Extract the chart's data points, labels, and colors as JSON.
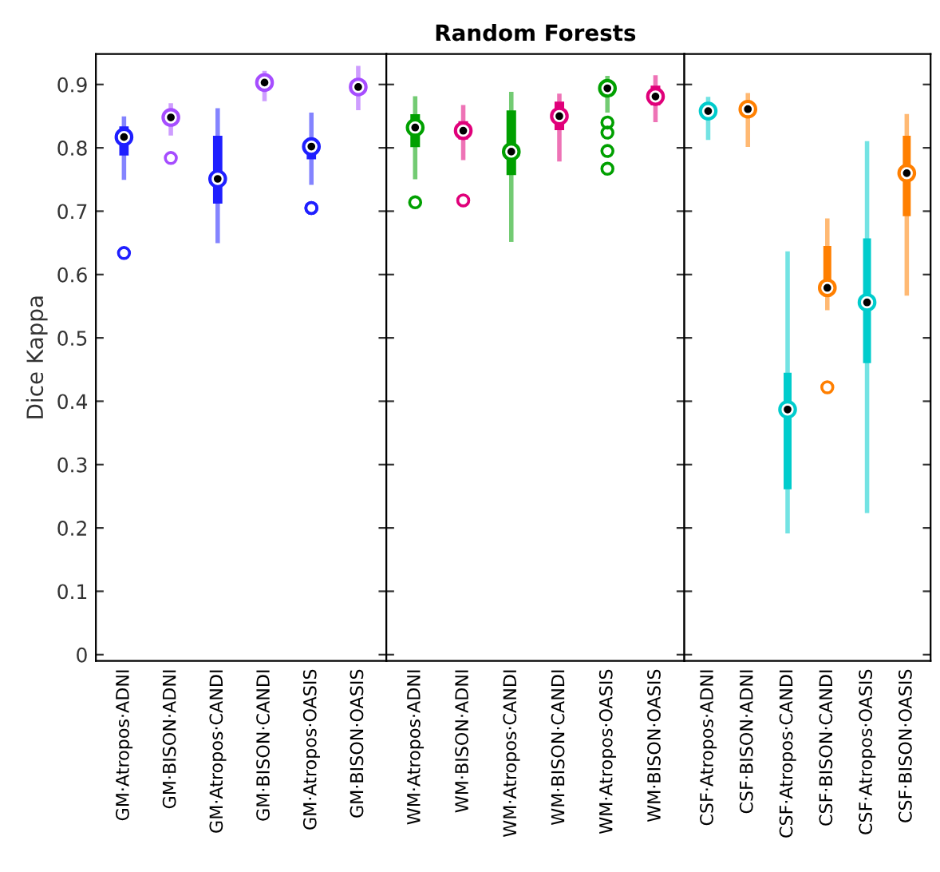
{
  "chart_data": [
    {
      "type": "box",
      "ylabel": "Dice Kappa",
      "categories": [
        "GM·Atropos·ADNI",
        "GM·BISON·ADNI",
        "GM·Atropos·CANDI",
        "GM·BISON·CANDI",
        "GM·Atropos·OASIS",
        "GM·BISON·OASIS"
      ],
      "colors": [
        "#1f1fff",
        "#a64dff",
        "#1f1fff",
        "#a64dff",
        "#1f1fff",
        "#a64dff"
      ],
      "boxes": [
        {
          "low": 0.753,
          "q1": 0.788,
          "median": 0.817,
          "q3": 0.834,
          "high": 0.846,
          "outliers": [
            0.634
          ]
        },
        {
          "low": 0.823,
          "q1": 0.842,
          "median": 0.848,
          "q3": 0.855,
          "high": 0.867,
          "outliers": [
            0.784
          ]
        },
        {
          "low": 0.653,
          "q1": 0.712,
          "median": 0.751,
          "q3": 0.819,
          "high": 0.859
        },
        {
          "low": 0.877,
          "q1": 0.896,
          "median": 0.903,
          "q3": 0.91,
          "high": 0.918
        },
        {
          "low": 0.745,
          "q1": 0.782,
          "median": 0.802,
          "q3": 0.813,
          "high": 0.852,
          "outliers": [
            0.705,
            0.705
          ]
        },
        {
          "low": 0.863,
          "q1": 0.888,
          "median": 0.896,
          "q3": 0.904,
          "high": 0.926
        }
      ],
      "ylim": [
        -0.01,
        0.948
      ],
      "yticks": [
        0,
        0.1,
        0.2,
        0.3,
        0.4,
        0.5,
        0.6,
        0.7,
        0.8,
        0.9
      ]
    },
    {
      "type": "box",
      "title": "Random Forests",
      "categories": [
        "WM·Atropos·ADNI",
        "WM·BISON·ADNI",
        "WM·Atropos·CANDI",
        "WM·BISON·CANDI",
        "WM·Atropos·OASIS",
        "WM·BISON·OASIS"
      ],
      "colors": [
        "#00a000",
        "#e0007a",
        "#00a000",
        "#e0007a",
        "#00a000",
        "#e0007a"
      ],
      "boxes": [
        {
          "low": 0.754,
          "q1": 0.801,
          "median": 0.832,
          "q3": 0.853,
          "high": 0.878,
          "outliers": [
            0.714
          ]
        },
        {
          "low": 0.784,
          "q1": 0.813,
          "median": 0.827,
          "q3": 0.842,
          "high": 0.864,
          "outliers": [
            0.717
          ]
        },
        {
          "low": 0.655,
          "q1": 0.757,
          "median": 0.794,
          "q3": 0.859,
          "high": 0.885
        },
        {
          "low": 0.782,
          "q1": 0.828,
          "median": 0.85,
          "q3": 0.873,
          "high": 0.882
        },
        {
          "low": 0.859,
          "q1": 0.888,
          "median": 0.894,
          "q3": 0.9,
          "high": 0.91,
          "outliers": [
            0.84,
            0.824,
            0.795,
            0.767
          ]
        },
        {
          "low": 0.844,
          "q1": 0.867,
          "median": 0.881,
          "q3": 0.898,
          "high": 0.911
        }
      ],
      "ylim": [
        -0.01,
        0.948
      ],
      "yticks": [
        0,
        0.1,
        0.2,
        0.3,
        0.4,
        0.5,
        0.6,
        0.7,
        0.8,
        0.9
      ],
      "tick_labels": "x"
    },
    {
      "type": "box",
      "categories": [
        "CSF·Atropos·ADNI",
        "CSF·BISON·ADNI",
        "CSF·Atropos·CANDI",
        "CSF·BISON·CANDI",
        "CSF·Atropos·OASIS",
        "CSF·BISON·OASIS"
      ],
      "colors": [
        "#00cccc",
        "#ff7f00",
        "#00cccc",
        "#ff7f00",
        "#00cccc",
        "#ff7f00"
      ],
      "boxes": [
        {
          "low": 0.816,
          "q1": 0.85,
          "median": 0.858,
          "q3": 0.865,
          "high": 0.877
        },
        {
          "low": 0.805,
          "q1": 0.852,
          "median": 0.861,
          "q3": 0.871,
          "high": 0.883
        },
        {
          "low": 0.195,
          "q1": 0.261,
          "median": 0.387,
          "q3": 0.445,
          "high": 0.633
        },
        {
          "low": 0.547,
          "q1": 0.565,
          "median": 0.579,
          "q3": 0.645,
          "high": 0.685,
          "outliers": [
            0.422
          ]
        },
        {
          "low": 0.227,
          "q1": 0.46,
          "median": 0.556,
          "q3": 0.657,
          "high": 0.807
        },
        {
          "low": 0.57,
          "q1": 0.692,
          "median": 0.76,
          "q3": 0.819,
          "high": 0.85
        }
      ],
      "ylim": [
        -0.01,
        0.948
      ],
      "yticks": [
        0,
        0.1,
        0.2,
        0.3,
        0.4,
        0.5,
        0.6,
        0.7,
        0.8,
        0.9
      ],
      "tick_labels": "x"
    }
  ]
}
